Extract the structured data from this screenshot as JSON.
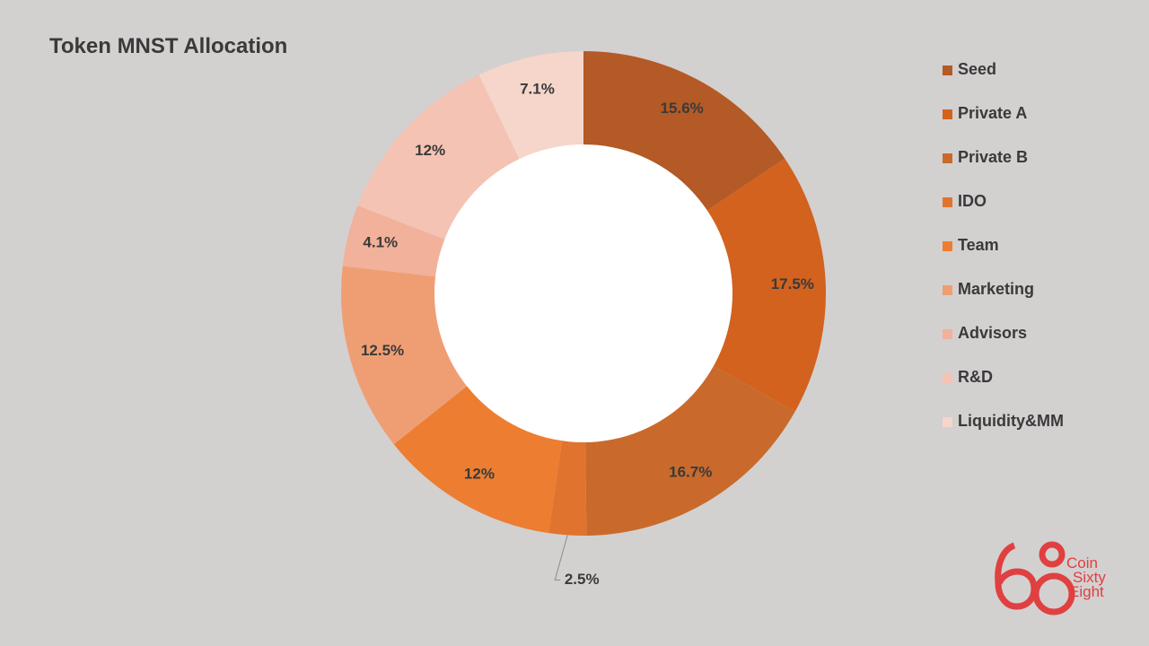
{
  "chart_data": {
    "type": "pie",
    "title": "Token MNST Allocation",
    "donut": true,
    "legend_position": "right",
    "series": [
      {
        "name": "Seed",
        "value": 15.6,
        "label": "15.6%",
        "color": "#b35a26"
      },
      {
        "name": "Private A",
        "value": 17.5,
        "label": "17.5%",
        "color": "#d2621e"
      },
      {
        "name": "Private B",
        "value": 16.7,
        "label": "16.7%",
        "color": "#c96a2c"
      },
      {
        "name": "IDO",
        "value": 2.5,
        "label": "2.5%",
        "color": "#e0742e"
      },
      {
        "name": "Team",
        "value": 12,
        "label": "12%",
        "color": "#ed7d31"
      },
      {
        "name": "Marketing",
        "value": 12.5,
        "label": "12.5%",
        "color": "#ef9e73"
      },
      {
        "name": "Advisors",
        "value": 4.1,
        "label": "4.1%",
        "color": "#f1b19a"
      },
      {
        "name": "R&D",
        "value": 12,
        "label": "12%",
        "color": "#f4c3b3"
      },
      {
        "name": "Liquidity&MM",
        "value": 7.1,
        "label": "7.1%",
        "color": "#f6d5ca"
      }
    ]
  },
  "logo": {
    "text_lines": [
      "Coin",
      "Sixty",
      "Eight"
    ],
    "color": "#e04040"
  }
}
